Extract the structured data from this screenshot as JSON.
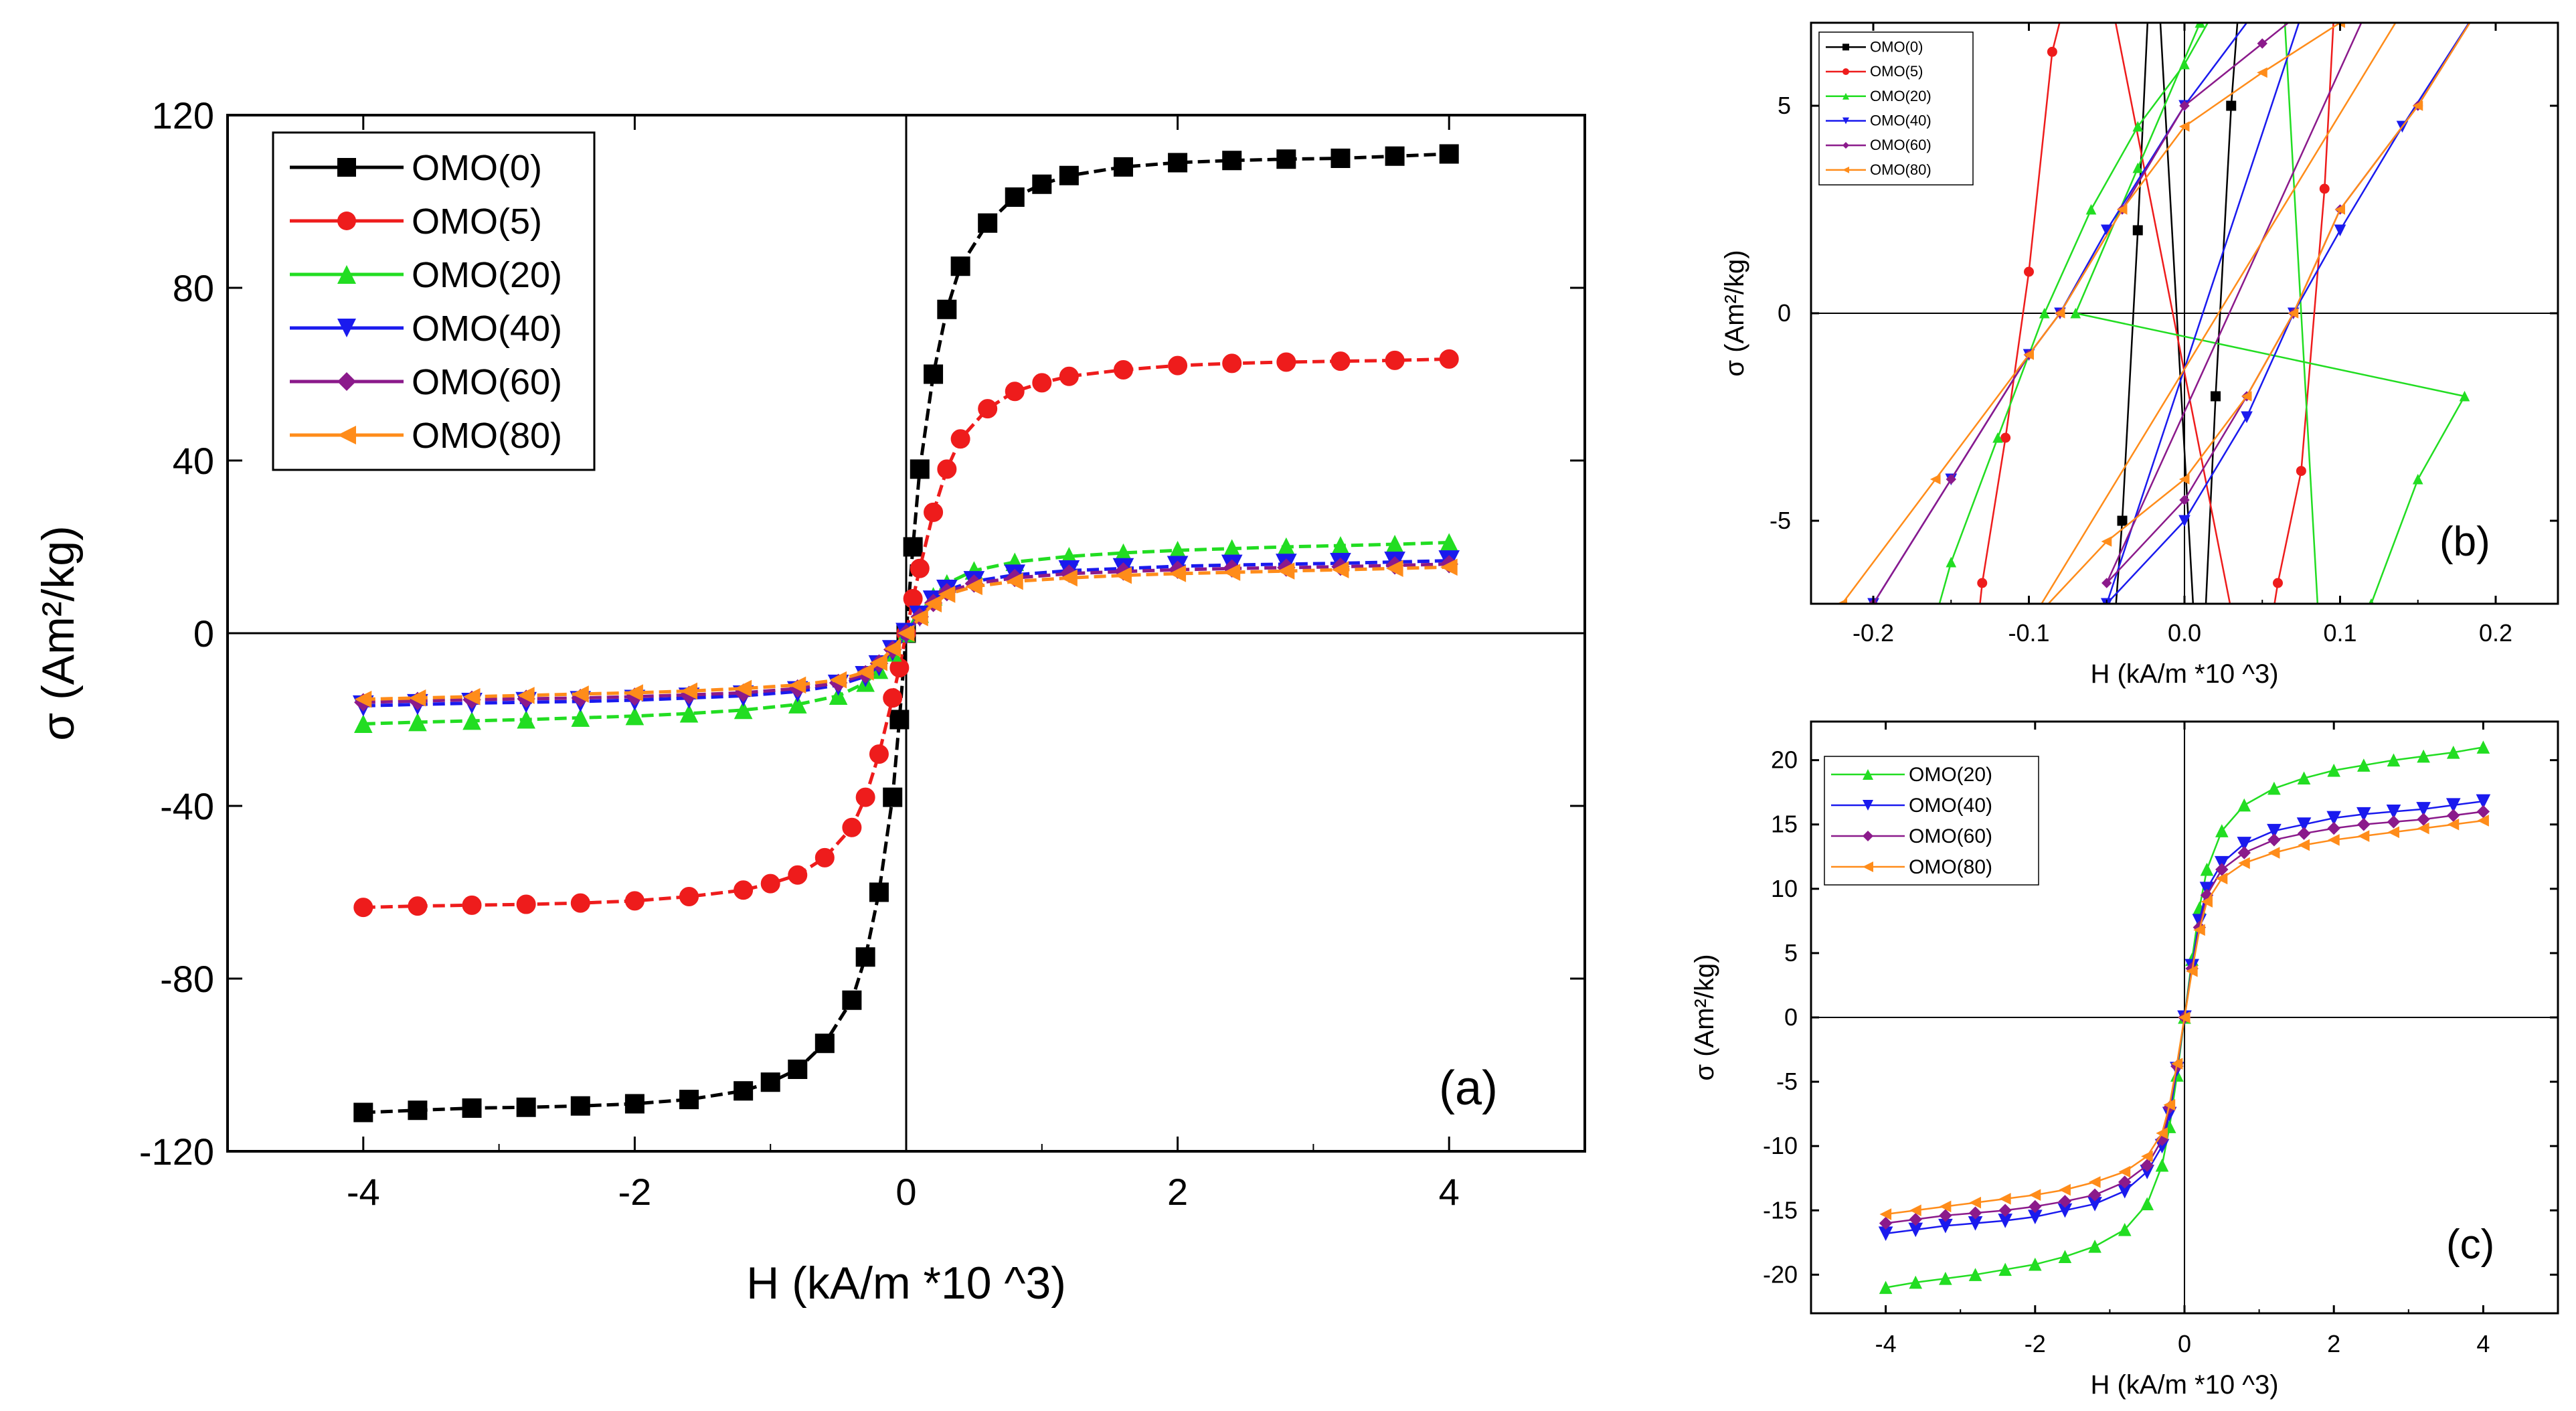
{
  "colors": {
    "OMO(0)": "#000000",
    "OMO(5)": "#ee1c1c",
    "OMO(20)": "#22dd22",
    "OMO(40)": "#1a1aee",
    "OMO(60)": "#8b1a8b",
    "OMO(80)": "#ff8c1a"
  },
  "markers": {
    "OMO(0)": "square",
    "OMO(5)": "circle",
    "OMO(20)": "triangle-up",
    "OMO(40)": "triangle-down",
    "OMO(60)": "diamond",
    "OMO(80)": "triangle-left"
  },
  "chart_data": [
    {
      "panel": "(a)",
      "type": "line",
      "xlabel": "H (kA/m *10 ^3)",
      "ylabel": "σ (Am²/kg)",
      "xlim": [
        -5,
        5
      ],
      "ylim": [
        -120,
        120
      ],
      "xticks": [
        -4,
        -2,
        0,
        2,
        4
      ],
      "yticks": [
        -120,
        -80,
        -40,
        0,
        40,
        80,
        120
      ],
      "legend_position": "top-left",
      "series": [
        {
          "name": "OMO(0)",
          "ms": 28,
          "x": [
            -4,
            -3.6,
            -3.2,
            -2.8,
            -2.4,
            -2.0,
            -1.6,
            -1.2,
            -1.0,
            -0.8,
            -0.6,
            -0.4,
            -0.3,
            -0.2,
            -0.1,
            -0.05,
            0,
            0.05,
            0.1,
            0.2,
            0.3,
            0.4,
            0.6,
            0.8,
            1.0,
            1.2,
            1.6,
            2.0,
            2.4,
            2.8,
            3.2,
            3.6,
            4
          ],
          "y": [
            -111,
            -110.5,
            -110,
            -109.8,
            -109.5,
            -109,
            -108,
            -106,
            -104,
            -101,
            -95,
            -85,
            -75,
            -60,
            -38,
            -20,
            0,
            20,
            38,
            60,
            75,
            85,
            95,
            101,
            104,
            106,
            108,
            109,
            109.5,
            109.8,
            110,
            110.5,
            111
          ]
        },
        {
          "name": "OMO(5)",
          "ms": 28,
          "x": [
            -4,
            -3.6,
            -3.2,
            -2.8,
            -2.4,
            -2.0,
            -1.6,
            -1.2,
            -1.0,
            -0.8,
            -0.6,
            -0.4,
            -0.3,
            -0.2,
            -0.1,
            -0.05,
            0,
            0.05,
            0.1,
            0.2,
            0.3,
            0.4,
            0.6,
            0.8,
            1.0,
            1.2,
            1.6,
            2.0,
            2.4,
            2.8,
            3.2,
            3.6,
            4
          ],
          "y": [
            -63.5,
            -63.2,
            -63,
            -62.8,
            -62.5,
            -62,
            -61,
            -59.5,
            -58,
            -56,
            -52,
            -45,
            -38,
            -28,
            -15,
            -8,
            0,
            8,
            15,
            28,
            38,
            45,
            52,
            56,
            58,
            59.5,
            61,
            62,
            62.5,
            62.8,
            63,
            63.2,
            63.5
          ]
        },
        {
          "name": "OMO(20)",
          "ms": 26,
          "x": [
            -4,
            -3.6,
            -3.2,
            -2.8,
            -2.4,
            -2.0,
            -1.6,
            -1.2,
            -0.8,
            -0.5,
            -0.3,
            -0.2,
            -0.1,
            0,
            0.1,
            0.2,
            0.3,
            0.5,
            0.8,
            1.2,
            1.6,
            2.0,
            2.4,
            2.8,
            3.2,
            3.6,
            4
          ],
          "y": [
            -21,
            -20.6,
            -20.3,
            -20,
            -19.6,
            -19.2,
            -18.6,
            -17.8,
            -16.5,
            -14.5,
            -11.5,
            -8.5,
            -4.5,
            0,
            4.5,
            8.5,
            11.5,
            14.5,
            16.5,
            17.8,
            18.6,
            19.2,
            19.6,
            20,
            20.3,
            20.6,
            21
          ]
        },
        {
          "name": "OMO(40)",
          "ms": 30,
          "x": [
            -4,
            -3.6,
            -3.2,
            -2.8,
            -2.4,
            -2.0,
            -1.6,
            -1.2,
            -0.8,
            -0.5,
            -0.3,
            -0.2,
            -0.1,
            0,
            0.1,
            0.2,
            0.3,
            0.5,
            0.8,
            1.2,
            1.6,
            2.0,
            2.4,
            2.8,
            3.2,
            3.6,
            4
          ],
          "y": [
            -16.8,
            -16.5,
            -16.2,
            -16,
            -15.8,
            -15.5,
            -15,
            -14.5,
            -13.5,
            -12,
            -10,
            -7.5,
            -4,
            0,
            4,
            7.5,
            10,
            12,
            13.5,
            14.5,
            15,
            15.5,
            15.8,
            16,
            16.2,
            16.5,
            16.8
          ]
        },
        {
          "name": "OMO(60)",
          "ms": 26,
          "x": [
            -4,
            -3.6,
            -3.2,
            -2.8,
            -2.4,
            -2.0,
            -1.6,
            -1.2,
            -0.8,
            -0.5,
            -0.3,
            -0.2,
            -0.1,
            0,
            0.1,
            0.2,
            0.3,
            0.5,
            0.8,
            1.2,
            1.6,
            2.0,
            2.4,
            2.8,
            3.2,
            3.6,
            4
          ],
          "y": [
            -16,
            -15.7,
            -15.4,
            -15.2,
            -15,
            -14.7,
            -14.3,
            -13.8,
            -12.8,
            -11.5,
            -9.5,
            -7,
            -3.8,
            0,
            3.8,
            7,
            9.5,
            11.5,
            12.8,
            13.8,
            14.3,
            14.7,
            15,
            15.2,
            15.4,
            15.7,
            16
          ]
        },
        {
          "name": "OMO(80)",
          "ms": 24,
          "x": [
            -4,
            -3.6,
            -3.2,
            -2.8,
            -2.4,
            -2.0,
            -1.6,
            -1.2,
            -0.8,
            -0.5,
            -0.3,
            -0.2,
            -0.1,
            0,
            0.1,
            0.2,
            0.3,
            0.5,
            0.8,
            1.2,
            1.6,
            2.0,
            2.4,
            2.8,
            3.2,
            3.6,
            4
          ],
          "y": [
            -15.3,
            -15,
            -14.7,
            -14.4,
            -14.1,
            -13.8,
            -13.4,
            -12.8,
            -12,
            -10.8,
            -9,
            -6.8,
            -3.6,
            0,
            3.6,
            6.8,
            9,
            10.8,
            12,
            12.8,
            13.4,
            13.8,
            14.1,
            14.4,
            14.7,
            15,
            15.3
          ]
        }
      ]
    },
    {
      "panel": "(b)",
      "type": "line",
      "xlabel": "H (kA/m *10 ^3)",
      "ylabel": "σ (Am²/kg)",
      "xlim": [
        -0.24,
        0.24
      ],
      "ylim": [
        -7,
        7
      ],
      "xticks": [
        -0.2,
        -0.1,
        0.0,
        0.1,
        0.2
      ],
      "yticks": [
        -5,
        0,
        5
      ],
      "legend_position": "top-left",
      "series": [
        {
          "name": "OMO(0)",
          "ms": 14,
          "x": [
            -0.05,
            -0.04,
            -0.03,
            -0.02,
            0.01,
            0.02,
            0.03,
            0.04
          ],
          "y": [
            -10,
            -5,
            2,
            10,
            -10,
            -2,
            5,
            10
          ]
        },
        {
          "name": "OMO(5)",
          "ms": 14,
          "x": [
            -0.14,
            -0.13,
            -0.115,
            -0.1,
            -0.085,
            -0.06,
            0.045,
            0.06,
            0.075,
            0.09,
            0.1
          ],
          "y": [
            -10,
            -6.5,
            -3,
            1,
            6.3,
            10,
            -10,
            -6.5,
            -3.8,
            3,
            10
          ]
        },
        {
          "name": "OMO(20)",
          "ms": 14,
          "x": [
            -0.18,
            -0.15,
            -0.12,
            -0.09,
            -0.06,
            -0.03,
            0,
            0.03,
            0.06,
            0.09,
            0.12,
            0.15,
            0.18,
            -0.07,
            -0.03,
            0.01
          ],
          "y": [
            -10,
            -6,
            -3,
            0,
            2.5,
            4.5,
            6,
            8,
            10,
            -10,
            -7,
            -4,
            -2,
            0,
            3.5,
            7
          ]
        },
        {
          "name": "OMO(40)",
          "ms": 16,
          "x": [
            -0.25,
            -0.2,
            -0.15,
            -0.1,
            -0.08,
            -0.05,
            0,
            0.05,
            0.1,
            -0.05,
            0,
            0.04,
            0.07,
            0.1,
            0.14,
            0.2
          ],
          "y": [
            -10,
            -7,
            -4,
            -1,
            0,
            2,
            5,
            7.5,
            10,
            -7,
            -5,
            -2.5,
            0,
            2,
            4.5,
            8
          ]
        },
        {
          "name": "OMO(60)",
          "ms": 14,
          "x": [
            -0.27,
            -0.2,
            -0.15,
            -0.1,
            -0.08,
            -0.04,
            0,
            0.05,
            0.1,
            0.15,
            -0.05,
            0,
            0.04,
            0.07,
            0.1,
            0.15,
            0.2
          ],
          "y": [
            -10,
            -7,
            -4,
            -1,
            0,
            2.5,
            5,
            6.5,
            8,
            10,
            -6.5,
            -4.5,
            -2,
            0,
            2.5,
            5,
            8
          ]
        },
        {
          "name": "OMO(80)",
          "ms": 14,
          "x": [
            -0.28,
            -0.22,
            -0.16,
            -0.1,
            -0.08,
            -0.04,
            0,
            0.05,
            0.1,
            0.16,
            -0.1,
            -0.05,
            0,
            0.04,
            0.07,
            0.1,
            0.15,
            0.2
          ],
          "y": [
            -10,
            -7,
            -4,
            -1,
            0,
            2.5,
            4.5,
            5.8,
            7,
            8.5,
            -7.5,
            -5.5,
            -4,
            -2,
            0,
            2.5,
            5,
            8
          ]
        }
      ]
    },
    {
      "panel": "(c)",
      "type": "line",
      "xlabel": "H (kA/m *10 ^3)",
      "ylabel": "σ (Am²/kg)",
      "xlim": [
        -5,
        5
      ],
      "ylim": [
        -23,
        23
      ],
      "xticks": [
        -4,
        -2,
        0,
        2,
        4
      ],
      "yticks": [
        -20,
        -15,
        -10,
        -5,
        0,
        5,
        10,
        15,
        20
      ],
      "legend_position": "top-left",
      "series": [
        {
          "name": "OMO(20)",
          "ms": 18,
          "x": [
            -4,
            -3.6,
            -3.2,
            -2.8,
            -2.4,
            -2.0,
            -1.6,
            -1.2,
            -0.8,
            -0.5,
            -0.3,
            -0.2,
            -0.1,
            0,
            0.1,
            0.2,
            0.3,
            0.5,
            0.8,
            1.2,
            1.6,
            2.0,
            2.4,
            2.8,
            3.2,
            3.6,
            4
          ],
          "y": [
            -21,
            -20.6,
            -20.3,
            -20,
            -19.6,
            -19.2,
            -18.6,
            -17.8,
            -16.5,
            -14.5,
            -11.5,
            -8.5,
            -4.5,
            0,
            4.5,
            8.5,
            11.5,
            14.5,
            16.5,
            17.8,
            18.6,
            19.2,
            19.6,
            20,
            20.3,
            20.6,
            21
          ]
        },
        {
          "name": "OMO(40)",
          "ms": 20,
          "x": [
            -4,
            -3.6,
            -3.2,
            -2.8,
            -2.4,
            -2.0,
            -1.6,
            -1.2,
            -0.8,
            -0.5,
            -0.3,
            -0.2,
            -0.1,
            0,
            0.1,
            0.2,
            0.3,
            0.5,
            0.8,
            1.2,
            1.6,
            2.0,
            2.4,
            2.8,
            3.2,
            3.6,
            4
          ],
          "y": [
            -16.8,
            -16.5,
            -16.2,
            -16,
            -15.8,
            -15.5,
            -15,
            -14.5,
            -13.5,
            -12,
            -10,
            -7.5,
            -4,
            0,
            4,
            7.5,
            10,
            12,
            13.5,
            14.5,
            15,
            15.5,
            15.8,
            16,
            16.2,
            16.5,
            16.8
          ]
        },
        {
          "name": "OMO(60)",
          "ms": 18,
          "x": [
            -4,
            -3.6,
            -3.2,
            -2.8,
            -2.4,
            -2.0,
            -1.6,
            -1.2,
            -0.8,
            -0.5,
            -0.3,
            -0.2,
            -0.1,
            0,
            0.1,
            0.2,
            0.3,
            0.5,
            0.8,
            1.2,
            1.6,
            2.0,
            2.4,
            2.8,
            3.2,
            3.6,
            4
          ],
          "y": [
            -16,
            -15.7,
            -15.4,
            -15.2,
            -15,
            -14.7,
            -14.3,
            -13.8,
            -12.8,
            -11.5,
            -9.5,
            -7,
            -3.8,
            0,
            3.8,
            7,
            9.5,
            11.5,
            12.8,
            13.8,
            14.3,
            14.7,
            15,
            15.2,
            15.4,
            15.7,
            16
          ]
        },
        {
          "name": "OMO(80)",
          "ms": 16,
          "x": [
            -4,
            -3.6,
            -3.2,
            -2.8,
            -2.4,
            -2.0,
            -1.6,
            -1.2,
            -0.8,
            -0.5,
            -0.3,
            -0.2,
            -0.1,
            0,
            0.1,
            0.2,
            0.3,
            0.5,
            0.8,
            1.2,
            1.6,
            2.0,
            2.4,
            2.8,
            3.2,
            3.6,
            4
          ],
          "y": [
            -15.3,
            -15,
            -14.7,
            -14.4,
            -14.1,
            -13.8,
            -13.4,
            -12.8,
            -12,
            -10.8,
            -9,
            -6.8,
            -3.6,
            0,
            3.6,
            6.8,
            9,
            10.8,
            12,
            12.8,
            13.4,
            13.8,
            14.1,
            14.4,
            14.7,
            15,
            15.3
          ]
        }
      ]
    }
  ]
}
